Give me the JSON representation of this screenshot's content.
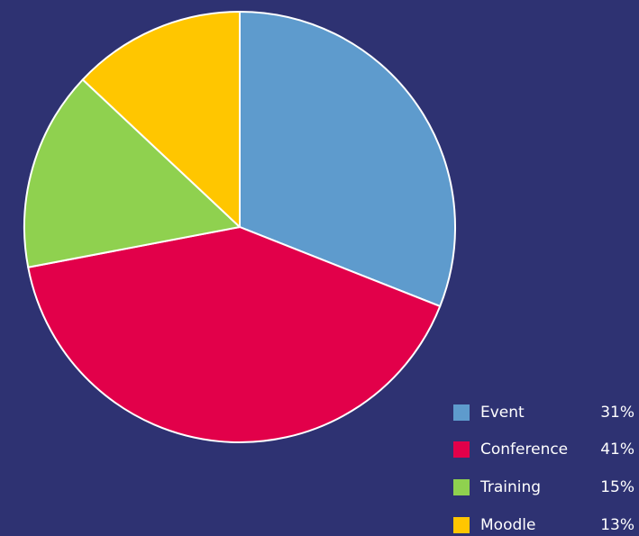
{
  "chart_data": {
    "type": "pie",
    "categories": [
      "Event",
      "Conference",
      "Training",
      "Moodle"
    ],
    "values": [
      31,
      41,
      15,
      13
    ],
    "value_labels": [
      "31%",
      "41%",
      "15%",
      "13%"
    ],
    "colors": [
      "#5e9bcd",
      "#e2004a",
      "#8fd14f",
      "#ffc600"
    ]
  }
}
